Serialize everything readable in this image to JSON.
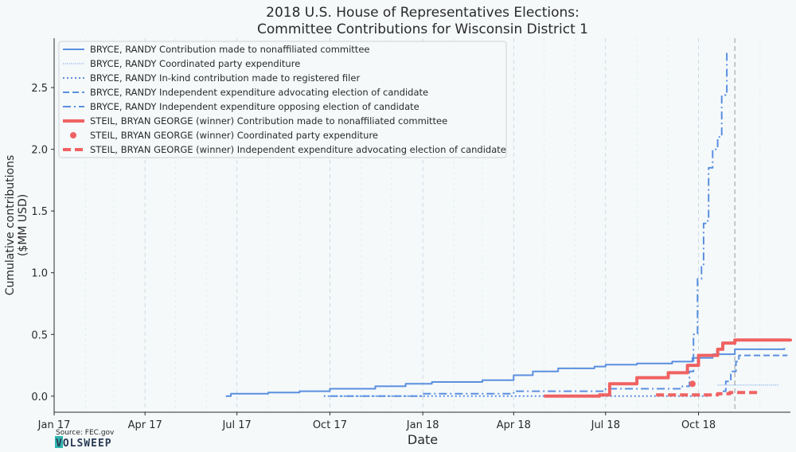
{
  "chart_data": {
    "type": "line",
    "title": [
      "2018 U.S. House of Representatives Elections:",
      "Committee Contributions for Wisconsin District 1"
    ],
    "xlabel": "Date",
    "ylabel": [
      "Cumulative contributions",
      "($MM USD)"
    ],
    "x_ticks": [
      "Jan 17",
      "Apr 17",
      "Jul 17",
      "Oct 17",
      "Jan 18",
      "Apr 18",
      "Jul 18",
      "Oct 18"
    ],
    "y_ticks": [
      "0.0",
      "0.5",
      "1.0",
      "1.5",
      "2.0",
      "2.5"
    ],
    "xlim": [
      "2017-01-01",
      "2018-12-31"
    ],
    "ylim": [
      -0.13,
      2.9
    ],
    "election_date": "2018-11-06",
    "grid": "vertical dashed",
    "legend_position": "top-left",
    "series": [
      {
        "name": "BRYCE, RANDY Contribution made to nonaffiliated committee",
        "color": "#5b8fe0",
        "dash": "solid",
        "width": 2,
        "points": [
          [
            "2017-06-20",
            0.0
          ],
          [
            "2017-06-25",
            0.02
          ],
          [
            "2017-08-01",
            0.03
          ],
          [
            "2017-09-01",
            0.04
          ],
          [
            "2017-10-01",
            0.06
          ],
          [
            "2017-11-15",
            0.08
          ],
          [
            "2017-12-15",
            0.1
          ],
          [
            "2018-01-10",
            0.115
          ],
          [
            "2018-03-01",
            0.13
          ],
          [
            "2018-04-01",
            0.17
          ],
          [
            "2018-04-20",
            0.2
          ],
          [
            "2018-05-15",
            0.225
          ],
          [
            "2018-06-20",
            0.24
          ],
          [
            "2018-07-01",
            0.255
          ],
          [
            "2018-08-01",
            0.265
          ],
          [
            "2018-09-05",
            0.28
          ],
          [
            "2018-09-25",
            0.31
          ],
          [
            "2018-10-15",
            0.34
          ],
          [
            "2018-11-06",
            0.38
          ],
          [
            "2018-12-25",
            0.39
          ]
        ]
      },
      {
        "name": "BRYCE, RANDY Coordinated party expenditure",
        "color": "#5b8fe0",
        "dash": "tiny-dot",
        "width": 1,
        "points": [
          [
            "2018-10-20",
            0.09
          ],
          [
            "2018-12-20",
            0.09
          ]
        ]
      },
      {
        "name": "BRYCE, RANDY In-kind contribution made to registered filer",
        "color": "#5b8fe0",
        "dash": "dotted",
        "width": 2,
        "points": [
          [
            "2017-09-25",
            0.0
          ],
          [
            "2018-10-10",
            0.005
          ]
        ]
      },
      {
        "name": "BRYCE, RANDY Independent expenditure advocating election of candidate",
        "color": "#5b8fe0",
        "dash": "dashed",
        "width": 2,
        "points": [
          [
            "2018-10-25",
            0.04
          ],
          [
            "2018-10-28",
            0.12
          ],
          [
            "2018-11-02",
            0.2
          ],
          [
            "2018-11-07",
            0.28
          ],
          [
            "2018-11-10",
            0.33
          ],
          [
            "2018-12-28",
            0.33
          ]
        ]
      },
      {
        "name": "BRYCE, RANDY Independent expenditure opposing election of candidate",
        "color": "#5b8fe0",
        "dash": "dash-dot",
        "width": 2,
        "points": [
          [
            "2017-10-01",
            0.0
          ],
          [
            "2018-01-01",
            0.02
          ],
          [
            "2018-04-01",
            0.04
          ],
          [
            "2018-07-01",
            0.06
          ],
          [
            "2018-09-15",
            0.08
          ],
          [
            "2018-09-22",
            0.2
          ],
          [
            "2018-09-26",
            0.5
          ],
          [
            "2018-09-30",
            0.95
          ],
          [
            "2018-10-04",
            1.05
          ],
          [
            "2018-10-06",
            1.4
          ],
          [
            "2018-10-09",
            1.42
          ],
          [
            "2018-10-11",
            1.85
          ],
          [
            "2018-10-15",
            2.0
          ],
          [
            "2018-10-20",
            2.1
          ],
          [
            "2018-10-24",
            2.44
          ],
          [
            "2018-10-28",
            2.45
          ],
          [
            "2018-10-29",
            2.8
          ]
        ]
      },
      {
        "name": "STEIL, BRYAN GEORGE (winner) Contribution made to nonaffiliated committee",
        "color": "#f06262",
        "dash": "solid",
        "width": 4,
        "points": [
          [
            "2018-05-01",
            0.0
          ],
          [
            "2018-06-25",
            0.01
          ],
          [
            "2018-07-05",
            0.1
          ],
          [
            "2018-08-01",
            0.15
          ],
          [
            "2018-09-01",
            0.19
          ],
          [
            "2018-09-20",
            0.25
          ],
          [
            "2018-10-01",
            0.33
          ],
          [
            "2018-10-20",
            0.38
          ],
          [
            "2018-10-25",
            0.43
          ],
          [
            "2018-11-06",
            0.455
          ],
          [
            "2018-12-31",
            0.465
          ]
        ]
      },
      {
        "name": "STEIL, BRYAN GEORGE (winner) Coordinated party expenditure",
        "color": "#f06262",
        "dash": "marker",
        "width": 4,
        "points": [
          [
            "2018-09-25",
            0.1
          ]
        ]
      },
      {
        "name": "STEIL, BRYAN GEORGE (winner) Independent expenditure advocating election of candidate",
        "color": "#f06262",
        "dash": "heavy-dash",
        "width": 4,
        "points": [
          [
            "2018-08-20",
            0.01
          ],
          [
            "2018-10-01",
            0.01
          ],
          [
            "2018-10-20",
            0.02
          ],
          [
            "2018-11-01",
            0.03
          ],
          [
            "2018-12-01",
            0.03
          ]
        ]
      }
    ]
  },
  "source": "Source: FEC.gov",
  "logo": "VOLSWEEP"
}
